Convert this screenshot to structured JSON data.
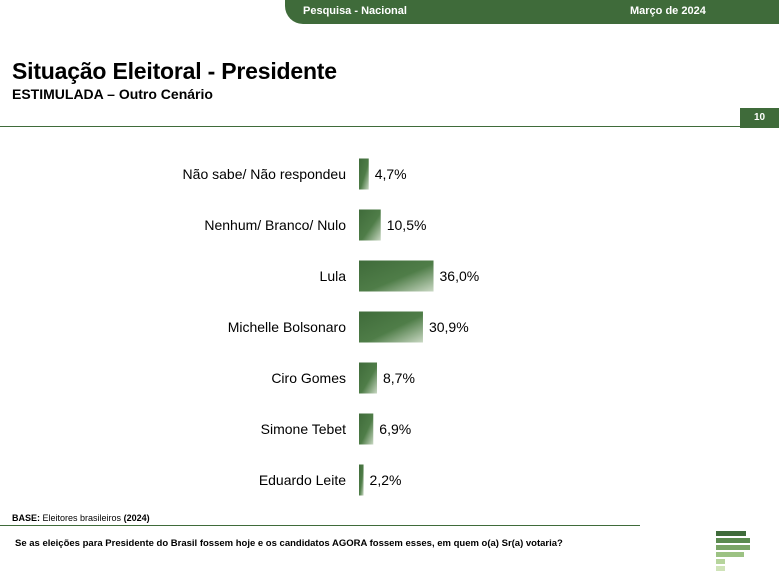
{
  "header": {
    "survey": "Pesquisa - Nacional",
    "date": "Março de 2024"
  },
  "title": "Situação Eleitoral - Presidente",
  "subtitle": "ESTIMULADA – Outro Cenário",
  "page_number": "10",
  "colors": {
    "accent": "#3f6b3a",
    "bar_light": "#c9d8c3"
  },
  "chart_data": {
    "type": "bar",
    "orientation": "horizontal",
    "categories": [
      "Não sabe/ Não respondeu",
      "Nenhum/ Branco/ Nulo",
      "Lula",
      "Michelle Bolsonaro",
      "Ciro Gomes",
      "Simone Tebet",
      "Eduardo Leite"
    ],
    "values": [
      4.7,
      10.5,
      36.0,
      30.9,
      8.7,
      6.9,
      2.2
    ],
    "value_labels": [
      "4,7%",
      "10,5%",
      "36,0%",
      "30,9%",
      "8,7%",
      "6,9%",
      "2,2%"
    ],
    "xlim": [
      0,
      100
    ],
    "grid": false,
    "legend": "none"
  },
  "footer": {
    "base_label": "BASE:",
    "base_text": "Eleitores brasileiros",
    "base_year": "(2024)",
    "question": "Se as eleições para Presidente do Brasil fossem hoje e os candidatos AGORA fossem esses, em quem o(a) Sr(a) votaria?"
  },
  "logo": {
    "icon": "p-stripes-logo-icon"
  }
}
